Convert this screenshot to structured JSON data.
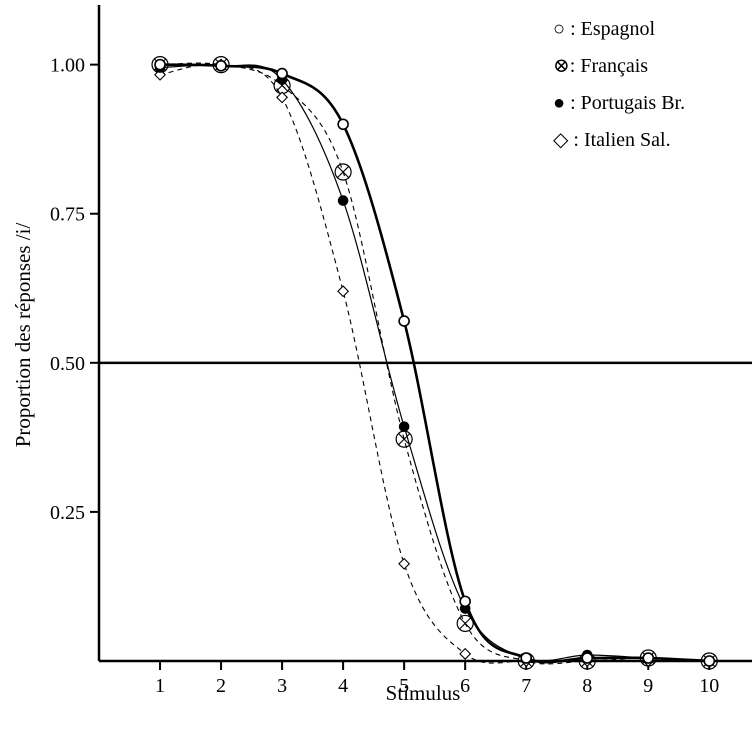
{
  "chart_data": {
    "type": "line",
    "title": "",
    "xlabel": "Stimulus",
    "ylabel": "Proportion des réponses /i/",
    "x": [
      1,
      2,
      3,
      4,
      5,
      6,
      7,
      8,
      9,
      10
    ],
    "xlim": [
      0,
      10.7
    ],
    "ylim": [
      0,
      1.1
    ],
    "yticks": [
      0.25,
      0.5,
      0.75,
      1.0
    ],
    "ytick_labels": [
      "0.25",
      "0.50",
      "0.75",
      "1.00"
    ],
    "xtick_labels": [
      "1",
      "2",
      "3",
      "4",
      "5",
      "6",
      "7",
      "8",
      "9",
      "10"
    ],
    "reference_line": 0.5,
    "grid": false,
    "legend_position": "top-right",
    "series": [
      {
        "name": "Espagnol",
        "legend": "○ : Espagnol",
        "marker": "open-circle",
        "line": "thick-solid",
        "values": [
          1.0,
          0.998,
          0.985,
          0.9,
          0.57,
          0.1,
          0.005,
          0.005,
          0.005,
          0.0
        ]
      },
      {
        "name": "Français",
        "legend": "⊗: Français",
        "marker": "circle-cross",
        "line": "dashed",
        "values": [
          1.0,
          1.0,
          0.965,
          0.82,
          0.372,
          0.063,
          0.0,
          0.0,
          0.005,
          0.0
        ]
      },
      {
        "name": "Portugais Br.",
        "legend": "● : Portugais Br.",
        "marker": "filled-circle",
        "line": "thin-solid",
        "values": [
          0.995,
          0.998,
          0.975,
          0.772,
          0.393,
          0.088,
          0.005,
          0.01,
          0.005,
          0.0
        ]
      },
      {
        "name": "Italien Sal.",
        "legend": "◇ : Italien Sal.",
        "marker": "open-diamond",
        "line": "dashed",
        "values": [
          0.983,
          1.0,
          0.945,
          0.62,
          0.163,
          0.012,
          0.0,
          0.0,
          0.0,
          0.0
        ]
      }
    ]
  }
}
